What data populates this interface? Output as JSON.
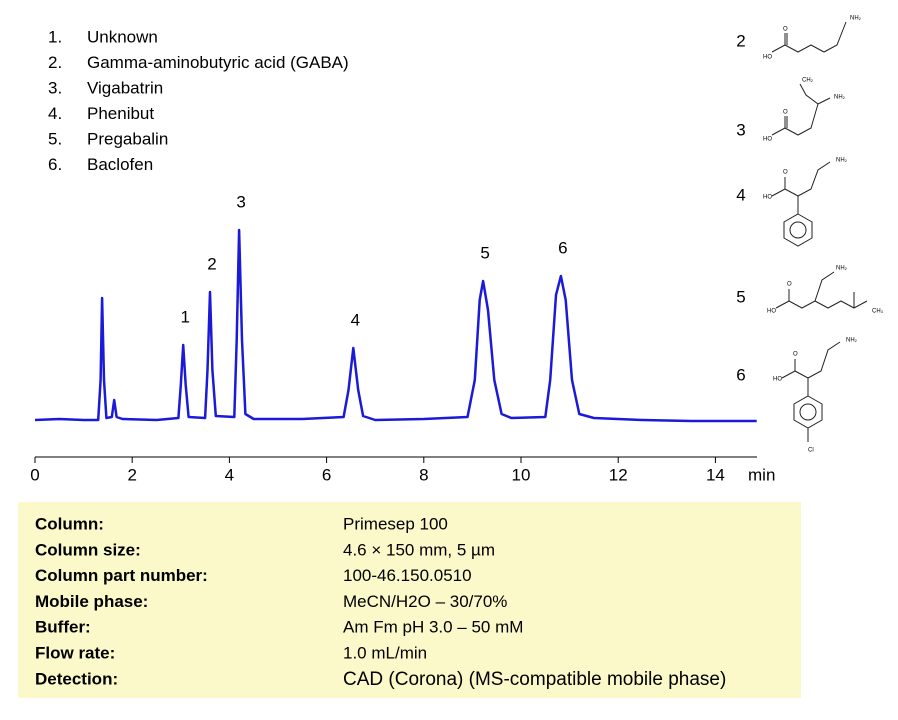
{
  "chart_data": {
    "type": "line",
    "compounds": [
      {
        "number": "1.",
        "name": "Unknown"
      },
      {
        "number": "2.",
        "name": "Gamma-aminobutyric acid (GABA)"
      },
      {
        "number": "3.",
        "name": "Vigabatrin"
      },
      {
        "number": "4.",
        "name": "Phenibut"
      },
      {
        "number": "5.",
        "name": "Pregabalin"
      },
      {
        "number": "6.",
        "name": "Baclofen"
      }
    ],
    "x_label": "min",
    "xlim": [
      0,
      15
    ],
    "xticks": [
      0,
      2,
      4,
      6,
      8,
      10,
      12,
      14
    ],
    "ylim": [
      -5,
      200
    ],
    "series": [
      {
        "color": "#1a1ad8",
        "x": [
          0,
          0.5,
          1.0,
          1.3,
          1.35,
          1.38,
          1.42,
          1.47,
          1.58,
          1.63,
          1.68,
          1.8,
          2.5,
          2.95,
          3.0,
          3.05,
          3.1,
          3.16,
          3.5,
          3.55,
          3.6,
          3.65,
          3.72,
          4.1,
          4.15,
          4.2,
          4.26,
          4.33,
          4.5,
          5.5,
          6.35,
          6.45,
          6.55,
          6.65,
          6.75,
          7.0,
          8.0,
          8.9,
          9.05,
          9.15,
          9.22,
          9.32,
          9.45,
          9.6,
          9.8,
          10.5,
          10.6,
          10.72,
          10.82,
          10.92,
          11.05,
          11.2,
          11.5,
          12.5,
          13.5,
          14.85
        ],
        "values": [
          0,
          1,
          0,
          0,
          40,
          122,
          40,
          2,
          3,
          20,
          3,
          1,
          0,
          2,
          35,
          75,
          35,
          3,
          2,
          50,
          128,
          50,
          4,
          3,
          80,
          190,
          80,
          6,
          1,
          1,
          3,
          30,
          72,
          30,
          4,
          0,
          1,
          3,
          40,
          120,
          139,
          110,
          40,
          6,
          2,
          3,
          40,
          125,
          144,
          120,
          40,
          6,
          2,
          0,
          -1,
          -1
        ]
      }
    ],
    "peak_labels": [
      {
        "label": "1",
        "x": 3.05
      },
      {
        "label": "2",
        "x": 3.6
      },
      {
        "label": "3",
        "x": 4.2
      },
      {
        "label": "4",
        "x": 6.55
      },
      {
        "label": "5",
        "x": 9.22
      },
      {
        "label": "6",
        "x": 10.82
      }
    ],
    "structures": [
      {
        "label": "2",
        "atoms": [
          "NH₂",
          "HO",
          "O"
        ]
      },
      {
        "label": "3",
        "atoms": [
          "CH₂",
          "NH₂",
          "HO",
          "O"
        ]
      },
      {
        "label": "4",
        "atoms": [
          "NH₂",
          "O",
          "HO"
        ]
      },
      {
        "label": "5",
        "atoms": [
          "NH₂",
          "O",
          "HO",
          "CH₃"
        ]
      },
      {
        "label": "6",
        "atoms": [
          "NH₂",
          "O",
          "HO",
          "Cl"
        ]
      }
    ]
  },
  "conditions": [
    [
      "Column:",
      "Primesep  100"
    ],
    [
      "Column size:",
      "4.6 × 150 mm, 5 µm"
    ],
    [
      "Column part number:",
      "100-46.150.0510"
    ],
    [
      "Mobile phase:",
      "MeCN/H2O – 30/70%"
    ],
    [
      "Buffer:",
      "Am Fm pH 3.0 – 50 mM"
    ],
    [
      "Flow rate:",
      "1.0 mL/min"
    ],
    [
      "Detection:",
      "CAD (Corona)  (MS-compatible mobile phase)"
    ]
  ]
}
